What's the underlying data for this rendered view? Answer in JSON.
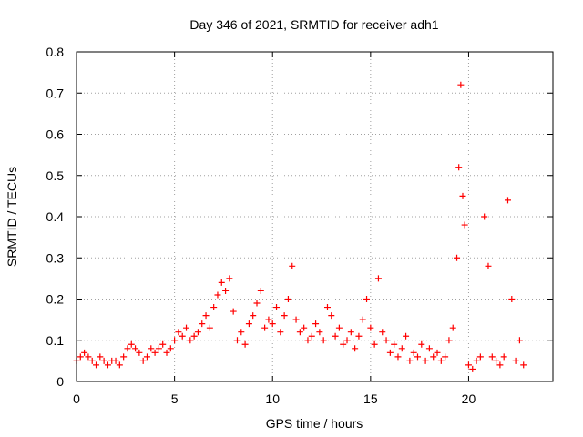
{
  "chart_data": {
    "type": "scatter",
    "title": "Day 346 of 2021, SRMTID for receiver adh1",
    "xlabel": "GPS time / hours",
    "ylabel": "SRMTID / TECUs",
    "xlim": [
      0,
      24.3
    ],
    "ylim": [
      0,
      0.8
    ],
    "xticks": [
      0,
      5,
      10,
      15,
      20
    ],
    "xtick_labels": [
      "0",
      "5",
      "10",
      "15",
      "20"
    ],
    "yticks": [
      0,
      0.1,
      0.2,
      0.3,
      0.4,
      0.5,
      0.6,
      0.7,
      0.8
    ],
    "ytick_labels": [
      "0",
      "0.1",
      "0.2",
      "0.3",
      "0.4",
      "0.5",
      "0.6",
      "0.7",
      "0.8"
    ],
    "grid": true,
    "marker": "+",
    "marker_color": "#ff0000",
    "series": [
      {
        "name": "SRMTID",
        "x": [
          0.0,
          0.2,
          0.4,
          0.6,
          0.8,
          1.0,
          1.2,
          1.4,
          1.6,
          1.8,
          2.0,
          2.2,
          2.4,
          2.6,
          2.8,
          3.0,
          3.2,
          3.4,
          3.6,
          3.8,
          4.0,
          4.2,
          4.4,
          4.6,
          4.8,
          5.0,
          5.2,
          5.4,
          5.6,
          5.8,
          6.0,
          6.2,
          6.4,
          6.6,
          6.8,
          7.0,
          7.2,
          7.4,
          7.6,
          7.8,
          8.0,
          8.2,
          8.4,
          8.6,
          8.8,
          9.0,
          9.2,
          9.4,
          9.6,
          9.8,
          10.0,
          10.2,
          10.4,
          10.6,
          10.8,
          11.0,
          11.2,
          11.4,
          11.6,
          11.8,
          12.0,
          12.2,
          12.4,
          12.6,
          12.8,
          13.0,
          13.2,
          13.4,
          13.6,
          13.8,
          14.0,
          14.2,
          14.4,
          14.6,
          14.8,
          15.0,
          15.2,
          15.4,
          15.6,
          15.8,
          16.0,
          16.2,
          16.4,
          16.6,
          16.8,
          17.0,
          17.2,
          17.4,
          17.6,
          17.8,
          18.0,
          18.2,
          18.4,
          18.6,
          18.8,
          19.0,
          19.2,
          19.4,
          19.5,
          19.6,
          19.7,
          19.8,
          20.0,
          20.2,
          20.4,
          20.6,
          20.8,
          21.0,
          21.2,
          21.4,
          21.6,
          21.8,
          22.0,
          22.2,
          22.4,
          22.6,
          22.8
        ],
        "y": [
          0.05,
          0.06,
          0.07,
          0.06,
          0.05,
          0.04,
          0.06,
          0.05,
          0.04,
          0.05,
          0.05,
          0.04,
          0.06,
          0.08,
          0.09,
          0.08,
          0.07,
          0.05,
          0.06,
          0.08,
          0.07,
          0.08,
          0.09,
          0.07,
          0.08,
          0.1,
          0.12,
          0.11,
          0.13,
          0.1,
          0.11,
          0.12,
          0.14,
          0.16,
          0.13,
          0.18,
          0.21,
          0.24,
          0.22,
          0.25,
          0.17,
          0.1,
          0.12,
          0.09,
          0.14,
          0.16,
          0.19,
          0.22,
          0.13,
          0.15,
          0.14,
          0.18,
          0.12,
          0.16,
          0.2,
          0.28,
          0.15,
          0.12,
          0.13,
          0.1,
          0.11,
          0.14,
          0.12,
          0.1,
          0.18,
          0.16,
          0.11,
          0.13,
          0.09,
          0.1,
          0.12,
          0.08,
          0.11,
          0.15,
          0.2,
          0.13,
          0.09,
          0.25,
          0.12,
          0.1,
          0.07,
          0.09,
          0.06,
          0.08,
          0.11,
          0.05,
          0.07,
          0.06,
          0.09,
          0.05,
          0.08,
          0.06,
          0.07,
          0.05,
          0.06,
          0.1,
          0.13,
          0.3,
          0.52,
          0.72,
          0.45,
          0.38,
          0.04,
          0.03,
          0.05,
          0.06,
          0.4,
          0.28,
          0.06,
          0.05,
          0.04,
          0.06,
          0.44,
          0.2,
          0.05,
          0.1,
          0.04
        ]
      }
    ]
  }
}
